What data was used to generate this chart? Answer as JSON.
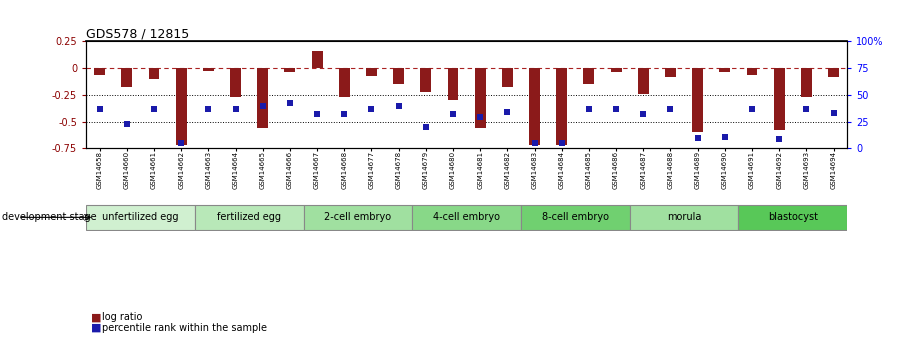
{
  "title": "GDS578 / 12815",
  "samples": [
    "GSM14658",
    "GSM14660",
    "GSM14661",
    "GSM14662",
    "GSM14663",
    "GSM14664",
    "GSM14665",
    "GSM14666",
    "GSM14667",
    "GSM14668",
    "GSM14677",
    "GSM14678",
    "GSM14679",
    "GSM14680",
    "GSM14681",
    "GSM14682",
    "GSM14683",
    "GSM14684",
    "GSM14685",
    "GSM14686",
    "GSM14687",
    "GSM14688",
    "GSM14689",
    "GSM14690",
    "GSM14691",
    "GSM14692",
    "GSM14693",
    "GSM14694"
  ],
  "log_ratio": [
    -0.06,
    -0.18,
    -0.1,
    -0.72,
    -0.03,
    -0.27,
    -0.56,
    -0.04,
    0.16,
    -0.27,
    -0.07,
    -0.15,
    -0.22,
    -0.3,
    -0.56,
    -0.18,
    -0.72,
    -0.72,
    -0.15,
    -0.04,
    -0.24,
    -0.08,
    -0.6,
    -0.04,
    -0.06,
    -0.58,
    -0.27,
    -0.08
  ],
  "percentile_rank": [
    37,
    23,
    37,
    5,
    37,
    37,
    40,
    42,
    32,
    32,
    37,
    40,
    20,
    32,
    29,
    34,
    5,
    5,
    37,
    37,
    32,
    37,
    10,
    11,
    37,
    9,
    37,
    33
  ],
  "stage_groups": [
    {
      "label": "unfertilized egg",
      "start": 0,
      "end": 4,
      "color": "#d0f0d0"
    },
    {
      "label": "fertilized egg",
      "start": 4,
      "end": 8,
      "color": "#b8e8b8"
    },
    {
      "label": "2-cell embryo",
      "start": 8,
      "end": 12,
      "color": "#a0e0a0"
    },
    {
      "label": "4-cell embryo",
      "start": 12,
      "end": 16,
      "color": "#88d888"
    },
    {
      "label": "8-cell embryo",
      "start": 16,
      "end": 20,
      "color": "#70d070"
    },
    {
      "label": "morula",
      "start": 20,
      "end": 24,
      "color": "#a0e0a0"
    },
    {
      "label": "blastocyst",
      "start": 24,
      "end": 28,
      "color": "#58c858"
    }
  ],
  "bar_color": "#8b1a1a",
  "dot_color": "#1a1aaa",
  "ylim_left": [
    -0.75,
    0.25
  ],
  "ylim_right": [
    0,
    100
  ],
  "yticks_left": [
    -0.75,
    -0.5,
    -0.25,
    0,
    0.25
  ],
  "yticks_right": [
    0,
    25,
    50,
    75,
    100
  ],
  "dotted_lines": [
    -0.25,
    -0.5
  ],
  "background_color": "#ffffff",
  "title_fontsize": 9,
  "tick_fontsize": 7,
  "sample_fontsize": 5,
  "stage_fontsize": 7,
  "legend_fontsize": 7
}
